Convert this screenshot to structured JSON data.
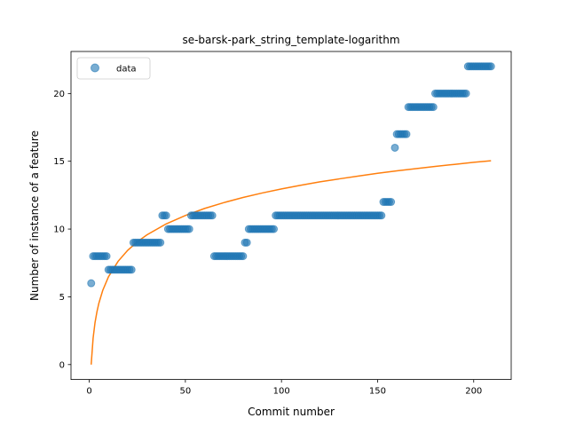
{
  "chart_data": {
    "type": "scatter",
    "title": "se-barsk-park_string_template-logarithm",
    "xlabel": "Commit number",
    "ylabel": "Number of instance of a feature",
    "xlim": [
      -9.5,
      219.5
    ],
    "ylim": [
      -1.1,
      23.1
    ],
    "xticks": [
      0,
      50,
      100,
      150,
      200
    ],
    "yticks": [
      0,
      5,
      10,
      15,
      20
    ],
    "legend": {
      "position": "top-left",
      "entries": [
        "data"
      ]
    },
    "colors": {
      "data": "#1f77b4",
      "fit": "#ff7f0e"
    },
    "series": [
      {
        "name": "data",
        "kind": "scatter",
        "points": [
          [
            1,
            6
          ],
          [
            2,
            8
          ],
          [
            3,
            8
          ],
          [
            4,
            8
          ],
          [
            5,
            8
          ],
          [
            6,
            8
          ],
          [
            7,
            8
          ],
          [
            8,
            8
          ],
          [
            9,
            8
          ],
          [
            10,
            7
          ],
          [
            11,
            7
          ],
          [
            12,
            7
          ],
          [
            13,
            7
          ],
          [
            14,
            7
          ],
          [
            15,
            7
          ],
          [
            16,
            7
          ],
          [
            17,
            7
          ],
          [
            18,
            7
          ],
          [
            19,
            7
          ],
          [
            20,
            7
          ],
          [
            21,
            7
          ],
          [
            22,
            7
          ],
          [
            23,
            9
          ],
          [
            24,
            9
          ],
          [
            25,
            9
          ],
          [
            26,
            9
          ],
          [
            27,
            9
          ],
          [
            28,
            9
          ],
          [
            29,
            9
          ],
          [
            30,
            9
          ],
          [
            31,
            9
          ],
          [
            32,
            9
          ],
          [
            33,
            9
          ],
          [
            34,
            9
          ],
          [
            35,
            9
          ],
          [
            36,
            9
          ],
          [
            37,
            9
          ],
          [
            38,
            11
          ],
          [
            39,
            11
          ],
          [
            40,
            11
          ],
          [
            41,
            10
          ],
          [
            42,
            10
          ],
          [
            43,
            10
          ],
          [
            44,
            10
          ],
          [
            45,
            10
          ],
          [
            46,
            10
          ],
          [
            47,
            10
          ],
          [
            48,
            10
          ],
          [
            49,
            10
          ],
          [
            50,
            10
          ],
          [
            51,
            10
          ],
          [
            52,
            10
          ],
          [
            53,
            11
          ],
          [
            54,
            11
          ],
          [
            55,
            11
          ],
          [
            56,
            11
          ],
          [
            57,
            11
          ],
          [
            58,
            11
          ],
          [
            59,
            11
          ],
          [
            60,
            11
          ],
          [
            61,
            11
          ],
          [
            62,
            11
          ],
          [
            63,
            11
          ],
          [
            64,
            11
          ],
          [
            65,
            8
          ],
          [
            66,
            8
          ],
          [
            67,
            8
          ],
          [
            68,
            8
          ],
          [
            69,
            8
          ],
          [
            70,
            8
          ],
          [
            71,
            8
          ],
          [
            72,
            8
          ],
          [
            73,
            8
          ],
          [
            74,
            8
          ],
          [
            75,
            8
          ],
          [
            76,
            8
          ],
          [
            77,
            8
          ],
          [
            78,
            8
          ],
          [
            79,
            8
          ],
          [
            80,
            8
          ],
          [
            81,
            9
          ],
          [
            82,
            9
          ],
          [
            83,
            10
          ],
          [
            84,
            10
          ],
          [
            85,
            10
          ],
          [
            86,
            10
          ],
          [
            87,
            10
          ],
          [
            88,
            10
          ],
          [
            89,
            10
          ],
          [
            90,
            10
          ],
          [
            91,
            10
          ],
          [
            92,
            10
          ],
          [
            93,
            10
          ],
          [
            94,
            10
          ],
          [
            95,
            10
          ],
          [
            96,
            10
          ],
          [
            97,
            11
          ],
          [
            98,
            11
          ],
          [
            99,
            11
          ],
          [
            100,
            11
          ],
          [
            101,
            11
          ],
          [
            102,
            11
          ],
          [
            103,
            11
          ],
          [
            104,
            11
          ],
          [
            105,
            11
          ],
          [
            106,
            11
          ],
          [
            107,
            11
          ],
          [
            108,
            11
          ],
          [
            109,
            11
          ],
          [
            110,
            11
          ],
          [
            111,
            11
          ],
          [
            112,
            11
          ],
          [
            113,
            11
          ],
          [
            114,
            11
          ],
          [
            115,
            11
          ],
          [
            116,
            11
          ],
          [
            117,
            11
          ],
          [
            118,
            11
          ],
          [
            119,
            11
          ],
          [
            120,
            11
          ],
          [
            121,
            11
          ],
          [
            122,
            11
          ],
          [
            123,
            11
          ],
          [
            124,
            11
          ],
          [
            125,
            11
          ],
          [
            126,
            11
          ],
          [
            127,
            11
          ],
          [
            128,
            11
          ],
          [
            129,
            11
          ],
          [
            130,
            11
          ],
          [
            131,
            11
          ],
          [
            132,
            11
          ],
          [
            133,
            11
          ],
          [
            134,
            11
          ],
          [
            135,
            11
          ],
          [
            136,
            11
          ],
          [
            137,
            11
          ],
          [
            138,
            11
          ],
          [
            139,
            11
          ],
          [
            140,
            11
          ],
          [
            141,
            11
          ],
          [
            142,
            11
          ],
          [
            143,
            11
          ],
          [
            144,
            11
          ],
          [
            145,
            11
          ],
          [
            146,
            11
          ],
          [
            147,
            11
          ],
          [
            148,
            11
          ],
          [
            149,
            11
          ],
          [
            150,
            11
          ],
          [
            151,
            11
          ],
          [
            152,
            11
          ],
          [
            153,
            12
          ],
          [
            154,
            12
          ],
          [
            155,
            12
          ],
          [
            156,
            12
          ],
          [
            157,
            12
          ],
          [
            159,
            16
          ],
          [
            160,
            17
          ],
          [
            161,
            17
          ],
          [
            162,
            17
          ],
          [
            163,
            17
          ],
          [
            164,
            17
          ],
          [
            165,
            17
          ],
          [
            166,
            19
          ],
          [
            167,
            19
          ],
          [
            168,
            19
          ],
          [
            169,
            19
          ],
          [
            170,
            19
          ],
          [
            171,
            19
          ],
          [
            172,
            19
          ],
          [
            173,
            19
          ],
          [
            174,
            19
          ],
          [
            175,
            19
          ],
          [
            176,
            19
          ],
          [
            177,
            19
          ],
          [
            178,
            19
          ],
          [
            179,
            19
          ],
          [
            180,
            20
          ],
          [
            181,
            20
          ],
          [
            182,
            20
          ],
          [
            183,
            20
          ],
          [
            184,
            20
          ],
          [
            185,
            20
          ],
          [
            186,
            20
          ],
          [
            187,
            20
          ],
          [
            188,
            20
          ],
          [
            189,
            20
          ],
          [
            190,
            20
          ],
          [
            191,
            20
          ],
          [
            192,
            20
          ],
          [
            193,
            20
          ],
          [
            194,
            20
          ],
          [
            195,
            20
          ],
          [
            196,
            20
          ],
          [
            197,
            22
          ],
          [
            198,
            22
          ],
          [
            199,
            22
          ],
          [
            200,
            22
          ],
          [
            201,
            22
          ],
          [
            202,
            22
          ],
          [
            203,
            22
          ],
          [
            204,
            22
          ],
          [
            205,
            22
          ],
          [
            206,
            22
          ],
          [
            207,
            22
          ],
          [
            208,
            22
          ],
          [
            209,
            22
          ]
        ]
      },
      {
        "kind": "line",
        "points": [
          [
            1,
            0
          ],
          [
            2,
            1.95
          ],
          [
            3,
            3.1
          ],
          [
            4,
            3.9
          ],
          [
            5,
            4.53
          ],
          [
            7,
            5.47
          ],
          [
            10,
            6.48
          ],
          [
            15,
            7.62
          ],
          [
            20,
            8.43
          ],
          [
            25,
            9.06
          ],
          [
            30,
            9.57
          ],
          [
            40,
            10.38
          ],
          [
            50,
            11.0
          ],
          [
            60,
            11.52
          ],
          [
            70,
            11.95
          ],
          [
            80,
            12.33
          ],
          [
            90,
            12.66
          ],
          [
            100,
            12.96
          ],
          [
            110,
            13.23
          ],
          [
            120,
            13.48
          ],
          [
            130,
            13.7
          ],
          [
            140,
            13.91
          ],
          [
            150,
            14.11
          ],
          [
            160,
            14.29
          ],
          [
            170,
            14.46
          ],
          [
            180,
            14.62
          ],
          [
            190,
            14.77
          ],
          [
            200,
            14.92
          ],
          [
            209,
            15.04
          ]
        ]
      }
    ]
  }
}
